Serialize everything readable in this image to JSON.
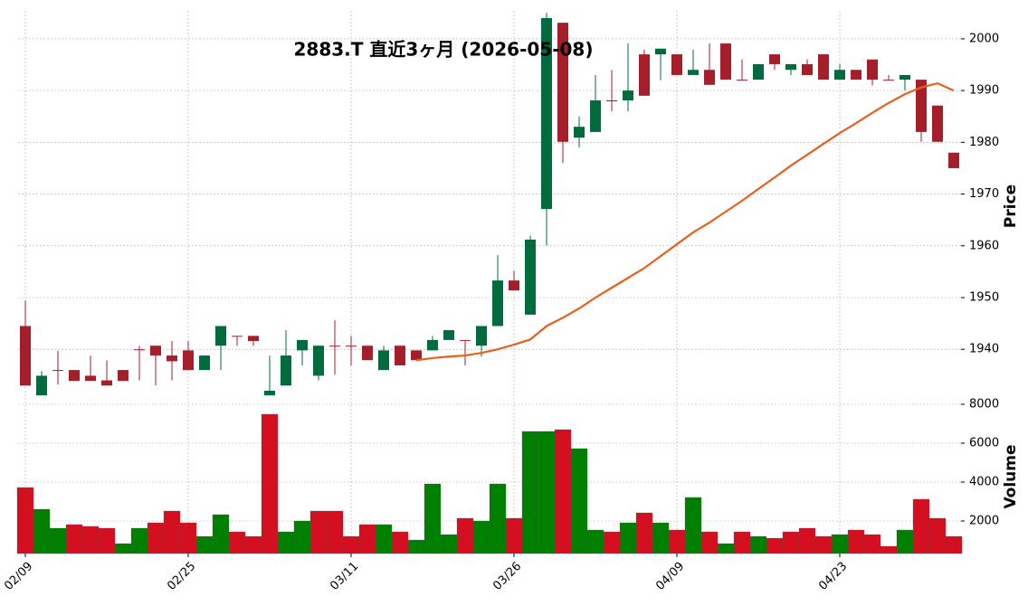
{
  "chart_data": {
    "type": "candlestick",
    "title": "2883.T  直近3ヶ月  (2026-05-08)",
    "categories": [
      "02/09",
      null,
      null,
      null,
      null,
      null,
      null,
      null,
      null,
      null,
      "02/25",
      null,
      null,
      null,
      null,
      null,
      null,
      null,
      null,
      null,
      "03/11",
      null,
      null,
      null,
      null,
      null,
      null,
      null,
      null,
      null,
      "03/26",
      null,
      null,
      null,
      null,
      null,
      null,
      null,
      null,
      null,
      "04/09",
      null,
      null,
      null,
      null,
      null,
      null,
      null,
      null,
      null,
      "04/23",
      null,
      null,
      null,
      null,
      null,
      null,
      null
    ],
    "open": [
      1944.5,
      1931.1,
      1936,
      1936,
      1934.9,
      1934,
      1936,
      1940,
      1940.7,
      1938.8,
      1939.8,
      1936,
      1940.7,
      1942.6,
      1942.6,
      1931.1,
      1933,
      1939.8,
      1934.9,
      1940.7,
      1940.7,
      1940.7,
      1936,
      1940.7,
      1939.8,
      1939.8,
      1941.8,
      1941.8,
      1940.7,
      1944.5,
      1953.3,
      1946.7,
      1967.1,
      2003.1,
      1980.9,
      1982,
      1988.1,
      1988.1,
      1997,
      1997,
      1997,
      1993,
      1994,
      1999.1,
      1992.1,
      1992.1,
      1997,
      1994,
      1995.1,
      1997,
      1992.1,
      1994,
      1996,
      1992.1,
      1992.1,
      1992.1,
      1987.1,
      1978
    ],
    "high": [
      1949.4,
      1935.8,
      1939.7,
      1936,
      1938.8,
      1937.9,
      1936,
      1940.7,
      1940.7,
      1941.6,
      1941.6,
      1938.8,
      1944.5,
      1942.6,
      1942.6,
      1938.8,
      1943.7,
      1941.8,
      1940.7,
      1945.6,
      1942.6,
      1940.7,
      1940.7,
      1940.7,
      1939.8,
      1942.6,
      1943.7,
      1941.8,
      1944.5,
      1958.2,
      1955.2,
      1962,
      2005,
      2003.1,
      1985,
      1993,
      1994,
      1999.1,
      1997.9,
      1998.1,
      1997,
      1997.9,
      1999.1,
      1999.1,
      1996,
      1995.1,
      1997,
      1995.1,
      1996,
      1997,
      1995.1,
      1994,
      1996,
      1993,
      1993,
      1992.1,
      1987.1,
      1978
    ],
    "low": [
      1933,
      1931.1,
      1933.2,
      1933.9,
      1933.9,
      1933,
      1933.9,
      1934,
      1933,
      1934,
      1936,
      1936,
      1936,
      1940.7,
      1940.7,
      1931.1,
      1933,
      1936.9,
      1934,
      1935.1,
      1936.9,
      1937.9,
      1936,
      1936.9,
      1937.9,
      1939.8,
      1941.8,
      1936.9,
      1938.6,
      1944.5,
      1951.4,
      1946.7,
      1960.1,
      1976,
      1979,
      1982,
      1986,
      1986,
      1989,
      1992,
      1993,
      1993,
      1991.1,
      1992.1,
      1992.1,
      1992.1,
      1994,
      1993,
      1993,
      1992.1,
      1992.1,
      1992.1,
      1991,
      1992.1,
      1990,
      1980.1,
      1980.1,
      1975
    ],
    "close": [
      1933,
      1934.9,
      1936,
      1933.9,
      1933.9,
      1933,
      1933.9,
      1940,
      1938.8,
      1937.7,
      1936,
      1938.8,
      1944.5,
      1942.6,
      1941.6,
      1932,
      1938.8,
      1941.8,
      1940.7,
      1940.7,
      1940.7,
      1937.9,
      1939.8,
      1936.9,
      1937.9,
      1941.8,
      1943.7,
      1941.8,
      1944.5,
      1953.3,
      1951.4,
      1961.2,
      2004,
      1980.1,
      1983,
      1988.1,
      1988.1,
      1990,
      1989,
      1998.1,
      1993,
      1994,
      1991.1,
      1992.1,
      1992.1,
      1995.1,
      1995.1,
      1995.1,
      1993,
      1992.1,
      1994,
      1992.1,
      1992.1,
      1992.1,
      1993,
      1982,
      1980.1,
      1975
    ],
    "up_color": "#006b3c",
    "down_color": "#a61e2a",
    "ylabel": "Price",
    "ylim": [
      1930.6,
      2005.4
    ],
    "yticks": [
      1940,
      1950,
      1960,
      1970,
      1980,
      1990,
      2000
    ],
    "grid": true,
    "ma": {
      "color": "#e8601c",
      "values": [
        null,
        null,
        null,
        null,
        null,
        null,
        null,
        null,
        null,
        null,
        null,
        null,
        null,
        null,
        null,
        null,
        null,
        null,
        null,
        null,
        null,
        null,
        null,
        null,
        1937.9,
        1938.3,
        1938.6,
        1938.8,
        1939.3,
        1940,
        1940.9,
        1941.9,
        1944.5,
        1946.1,
        1947.9,
        1950,
        1951.9,
        1953.8,
        1955.7,
        1958,
        1960.3,
        1962.6,
        1964.5,
        1966.6,
        1968.7,
        1971,
        1973.2,
        1975.5,
        1977.6,
        1979.7,
        1981.8,
        1983.7,
        1985.7,
        1987.6,
        1989.3,
        1990.6,
        1991.4,
        1990
      ]
    },
    "volume": {
      "ylabel": "Volume",
      "up_color": "#008000",
      "down_color": "#d40f1f",
      "ylim": [
        326,
        8326
      ],
      "yticks": [
        2000,
        4000,
        6000,
        8000
      ],
      "values": [
        3721,
        2605,
        1628,
        1814,
        1721,
        1628,
        837,
        1628,
        1907,
        2512,
        1907,
        1209,
        2326,
        1442,
        1209,
        7488,
        1442,
        2000,
        2512,
        2512,
        1209,
        1814,
        1814,
        1442,
        1023,
        3907,
        1302,
        2140,
        2000,
        3907,
        2140,
        6605,
        6605,
        6698,
        5721,
        1535,
        1442,
        1907,
        2419,
        1907,
        1535,
        3209,
        1442,
        837,
        1442,
        1209,
        1116,
        1442,
        1628,
        1209,
        1302,
        1535,
        1302,
        698,
        1535,
        3116,
        2140,
        1209
      ]
    }
  }
}
